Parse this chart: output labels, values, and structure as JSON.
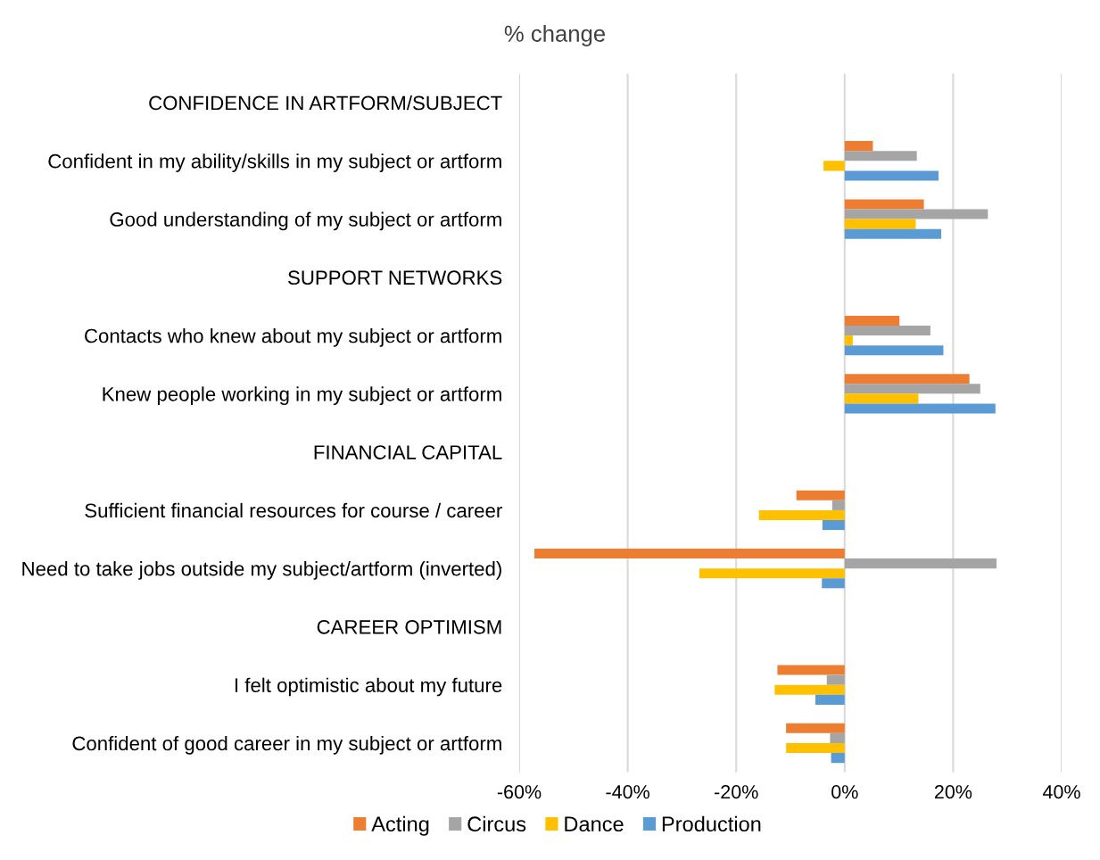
{
  "chart_data": {
    "type": "bar",
    "orientation": "horizontal",
    "title": "% change",
    "categories": [
      "CONFIDENCE IN ARTFORM/SUBJECT",
      "Confident in my ability/skills in my subject or artform",
      "Good understanding of my subject or artform",
      "SUPPORT NETWORKS",
      "Contacts who knew about my subject or artform",
      "Knew people working in my subject or artform",
      "FINANCIAL CAPITAL",
      "Sufficient financial resources for course / career",
      "Need to take jobs outside my subject/artform (inverted)",
      "CAREER OPTIMISM",
      "I felt optimistic about my future",
      "Confident of good career in my subject or artform"
    ],
    "series": [
      {
        "name": "Acting",
        "color": "#ed7d31",
        "values": [
          null,
          5.2,
          14.6,
          null,
          10.1,
          23.0,
          null,
          -8.9,
          -57.2,
          null,
          -12.4,
          -10.8
        ]
      },
      {
        "name": "Circus",
        "color": "#a5a5a5",
        "values": [
          null,
          13.3,
          26.4,
          null,
          15.8,
          25.0,
          null,
          -2.3,
          28.0,
          null,
          -3.3,
          -2.7
        ]
      },
      {
        "name": "Dance",
        "color": "#ffc000",
        "values": [
          null,
          -3.9,
          13.1,
          null,
          1.5,
          13.6,
          null,
          -15.8,
          -26.8,
          null,
          -12.9,
          -10.8
        ]
      },
      {
        "name": "Production",
        "color": "#5b9bd5",
        "values": [
          null,
          17.3,
          17.8,
          null,
          18.2,
          27.8,
          null,
          -4.1,
          -4.2,
          null,
          -5.4,
          -2.5
        ]
      }
    ],
    "xlim": [
      -60,
      40
    ],
    "xticks": [
      {
        "value": -60,
        "label": "-60%"
      },
      {
        "value": -40,
        "label": "-40%"
      },
      {
        "value": -20,
        "label": "-20%"
      },
      {
        "value": 0,
        "label": "0%"
      },
      {
        "value": 20,
        "label": "20%"
      },
      {
        "value": 40,
        "label": "40%"
      }
    ],
    "grid": "x",
    "legend": "bottom"
  }
}
